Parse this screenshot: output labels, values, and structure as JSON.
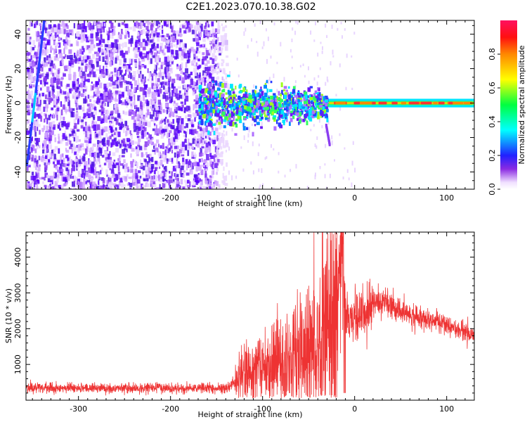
{
  "title": "C2E1.2023.070.10.38.G02",
  "chart_data": [
    {
      "type": "heatmap",
      "xlabel": "Height of straight line (km)",
      "ylabel": "Frequency (Hz)",
      "xlim": [
        -357,
        130
      ],
      "ylim": [
        -50,
        48
      ],
      "xticks": [
        "-300",
        "-200",
        "-100",
        "0",
        "100"
      ],
      "yticks": [
        "-40",
        "-20",
        "0",
        "20",
        "40"
      ],
      "colorbar": {
        "label": "Normalized spectral amplitude",
        "range": [
          0,
          1
        ],
        "ticks": [
          "0.0",
          "0.2",
          "0.4",
          "0.6",
          "0.8"
        ]
      },
      "features": {
        "noise_region_x": [
          -357,
          -150
        ],
        "band_center_hz": 0,
        "band_x": [
          -170,
          130
        ],
        "band_width_hz": 4,
        "steep_line_x": [
          -357,
          -338
        ]
      }
    },
    {
      "type": "line",
      "xlabel": "Height of straight line (km)",
      "ylabel": "SNR (10 * v/v)",
      "xlim": [
        -357,
        130
      ],
      "ylim": [
        0,
        4700
      ],
      "xticks": [
        "-300",
        "-200",
        "-100",
        "0",
        "100"
      ],
      "yticks": [
        "1000",
        "2000",
        "3000",
        "4000"
      ],
      "color": "#ee3333",
      "x": [
        -357,
        -300,
        -200,
        -140,
        -125,
        -100,
        -50,
        -30,
        -20,
        -12,
        -10,
        0,
        10,
        30,
        60,
        100,
        130
      ],
      "y": [
        350,
        330,
        330,
        330,
        600,
        900,
        1300,
        2000,
        2200,
        3200,
        2300,
        2400,
        2500,
        2800,
        2400,
        2100,
        1800
      ]
    }
  ]
}
